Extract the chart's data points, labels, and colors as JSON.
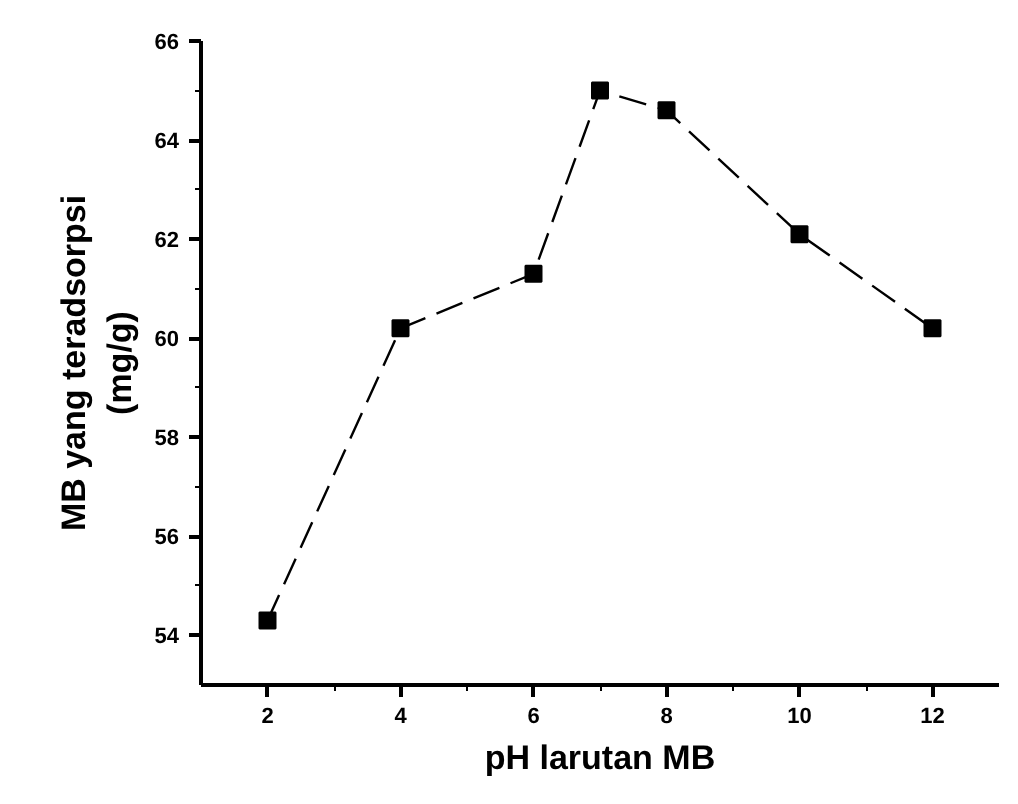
{
  "chart_data": {
    "type": "line",
    "xlabel": "pH larutan MB",
    "ylabel": "MB yang teradsorpsi\n(mg/g)",
    "x": [
      2,
      4,
      6,
      7,
      8,
      10,
      12
    ],
    "series": [
      {
        "color": "#000000",
        "values": [
          54.3,
          60.2,
          61.3,
          65.0,
          64.6,
          62.1,
          60.2
        ]
      }
    ],
    "xlim": [
      1,
      13
    ],
    "ylim": [
      53,
      66
    ],
    "xticks": [
      2,
      4,
      6,
      8,
      10,
      12
    ],
    "yticks": [
      54,
      56,
      58,
      60,
      62,
      64,
      66
    ],
    "marker": "square",
    "line_style": "dashed",
    "grid": false
  }
}
